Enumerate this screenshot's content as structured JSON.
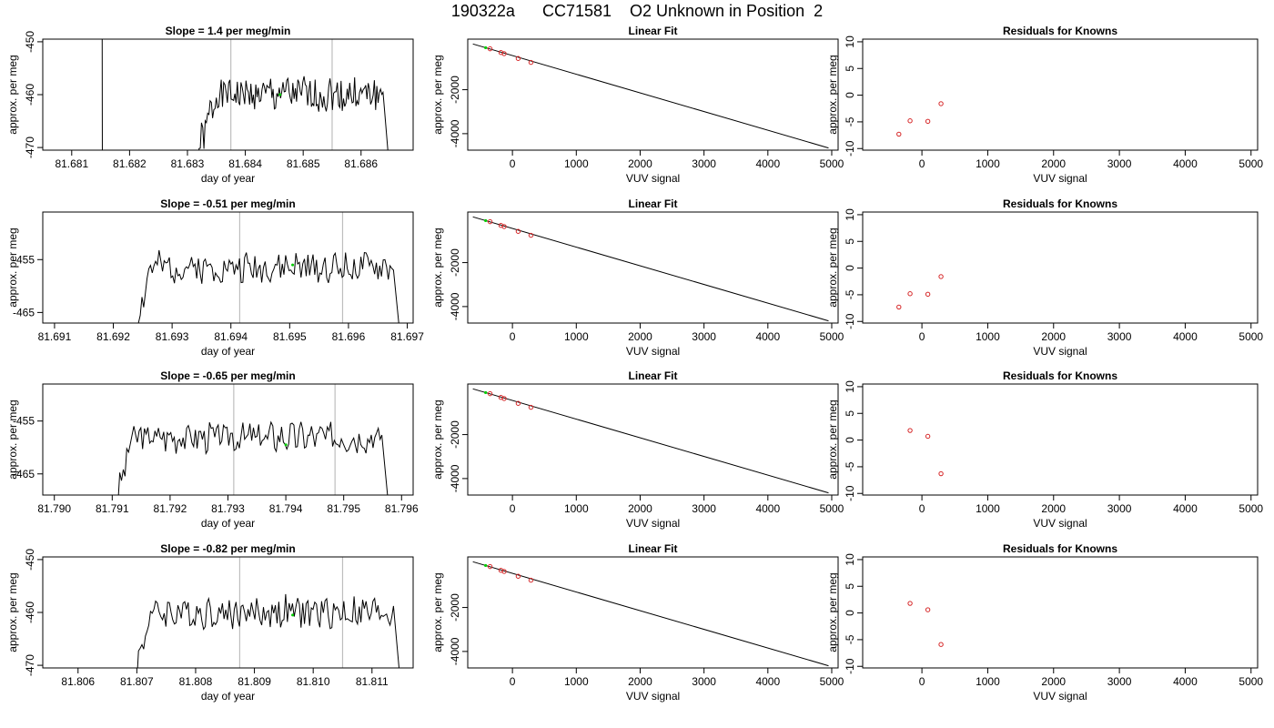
{
  "figure": {
    "title": "190322a      CC71581    O2 Unknown in Position  2"
  },
  "rows": [
    {
      "drift": {
        "title": "Slope =  1.4  per meg/min",
        "xlabel": "day of year",
        "ylabel": "approx. per meg",
        "xlim": [
          81.6805,
          81.6869
        ],
        "ylim": [
          -470.5,
          -449.5
        ],
        "xticks": [
          "81.681",
          "81.682",
          "81.683",
          "81.684",
          "81.685",
          "81.686"
        ],
        "yticks": [
          "-450",
          "-460",
          "-470"
        ],
        "ylabel_ticks_rotated": true,
        "segment": [
          81.6815,
          81.6865
        ],
        "start_shape": "spike",
        "vlines": [
          81.68375,
          81.6855
        ],
        "green_point": {
          "x": 81.6846,
          "y": -460
        },
        "level": -460,
        "amplitude": 3.2,
        "end_value": -459.5,
        "seed": 1
      },
      "fit": {
        "title": "Linear Fit",
        "xlabel": "VUV signal",
        "ylabel": "approx. per meg",
        "xlim": [
          -700,
          5100
        ],
        "ylim": [
          -4750,
          300
        ],
        "xticks": [
          "0",
          "1000",
          "2000",
          "3000",
          "4000",
          "5000"
        ],
        "yticks": [
          "-2000",
          "-4000"
        ],
        "line": {
          "x0": -620,
          "y0": 80,
          "x1": 4950,
          "y1": -4650
        },
        "red_points": [
          {
            "x": -350,
            "y": -140
          },
          {
            "x": -180,
            "y": -310
          },
          {
            "x": -130,
            "y": -360
          },
          {
            "x": 90,
            "y": -580
          },
          {
            "x": 290,
            "y": -760
          }
        ],
        "green_point": {
          "x": -420,
          "y": -90
        }
      },
      "resid": {
        "title": "Residuals for Knowns",
        "xlabel": "VUV signal",
        "ylabel": "approx. per meg",
        "xlim": [
          -900,
          5100
        ],
        "ylim": [
          -10.3,
          10.5
        ],
        "xticks": [
          "0",
          "1000",
          "2000",
          "3000",
          "4000",
          "5000"
        ],
        "yticks": [
          "10",
          "5",
          "0",
          "-5",
          "-10"
        ],
        "points": [
          {
            "x": -350,
            "y": -7.3
          },
          {
            "x": -180,
            "y": -4.8
          },
          {
            "x": 90,
            "y": -4.9
          },
          {
            "x": 290,
            "y": -1.6
          }
        ]
      }
    },
    {
      "drift": {
        "title": "Slope =  -0.51  per meg/min",
        "xlabel": "day of year",
        "ylabel": "approx. per meg",
        "xlim": [
          81.6908,
          81.6971
        ],
        "ylim": [
          -467,
          -446
        ],
        "xticks": [
          "81.691",
          "81.692",
          "81.693",
          "81.694",
          "81.695",
          "81.696",
          "81.697"
        ],
        "yticks": [
          "-455",
          "-465"
        ],
        "ylabel_ticks_rotated": false,
        "segment": [
          81.6924,
          81.6969
        ],
        "start_shape": "ramp",
        "vlines": [
          81.69415,
          81.6959
        ],
        "green_point": {
          "x": 81.69505,
          "y": -456
        },
        "level": -456.5,
        "amplitude": 2.6,
        "end_value": -467,
        "seed": 2
      },
      "fit": {
        "title": "Linear Fit",
        "xlabel": "VUV signal",
        "ylabel": "approx. per meg",
        "xlim": [
          -700,
          5100
        ],
        "ylim": [
          -4750,
          300
        ],
        "xticks": [
          "0",
          "1000",
          "2000",
          "3000",
          "4000",
          "5000"
        ],
        "yticks": [
          "-2000",
          "-4000"
        ],
        "line": {
          "x0": -620,
          "y0": 80,
          "x1": 4950,
          "y1": -4650
        },
        "red_points": [
          {
            "x": -350,
            "y": -140
          },
          {
            "x": -180,
            "y": -310
          },
          {
            "x": -130,
            "y": -360
          },
          {
            "x": 90,
            "y": -580
          },
          {
            "x": 290,
            "y": -760
          }
        ],
        "green_point": {
          "x": -420,
          "y": -90
        }
      },
      "resid": {
        "title": "Residuals for Knowns",
        "xlabel": "VUV signal",
        "ylabel": "approx. per meg",
        "xlim": [
          -900,
          5100
        ],
        "ylim": [
          -10.3,
          10.5
        ],
        "xticks": [
          "0",
          "1000",
          "2000",
          "3000",
          "4000",
          "5000"
        ],
        "yticks": [
          "10",
          "5",
          "0",
          "-5",
          "-10"
        ],
        "points": [
          {
            "x": -350,
            "y": -7.3
          },
          {
            "x": -180,
            "y": -4.8
          },
          {
            "x": 90,
            "y": -4.9
          },
          {
            "x": 290,
            "y": -1.6
          }
        ]
      }
    },
    {
      "drift": {
        "title": "Slope =  -0.65  per meg/min",
        "xlabel": "day of year",
        "ylabel": "approx. per meg",
        "xlim": [
          81.7898,
          81.7962
        ],
        "ylim": [
          -469,
          -448
        ],
        "xticks": [
          "81.790",
          "81.791",
          "81.792",
          "81.793",
          "81.794",
          "81.795",
          "81.796"
        ],
        "yticks": [
          "-455",
          "-465"
        ],
        "ylabel_ticks_rotated": false,
        "segment": [
          81.7911,
          81.7958
        ],
        "start_shape": "ramp",
        "vlines": [
          81.7931,
          81.79485
        ],
        "green_point": {
          "x": 81.794,
          "y": -459.5
        },
        "level": -458,
        "amplitude": 2.6,
        "end_value": -469,
        "seed": 3
      },
      "fit": {
        "title": "Linear Fit",
        "xlabel": "VUV signal",
        "ylabel": "approx. per meg",
        "xlim": [
          -700,
          5100
        ],
        "ylim": [
          -4750,
          300
        ],
        "xticks": [
          "0",
          "1000",
          "2000",
          "3000",
          "4000",
          "5000"
        ],
        "yticks": [
          "-2000",
          "-4000"
        ],
        "line": {
          "x0": -620,
          "y0": 80,
          "x1": 4950,
          "y1": -4650
        },
        "red_points": [
          {
            "x": -350,
            "y": -140
          },
          {
            "x": -180,
            "y": -310
          },
          {
            "x": -130,
            "y": -360
          },
          {
            "x": 90,
            "y": -580
          },
          {
            "x": 290,
            "y": -760
          }
        ],
        "green_point": {
          "x": -420,
          "y": -90
        }
      },
      "resid": {
        "title": "Residuals for Knowns",
        "xlabel": "VUV signal",
        "ylabel": "approx. per meg",
        "xlim": [
          -900,
          5100
        ],
        "ylim": [
          -10.3,
          10.5
        ],
        "xticks": [
          "0",
          "1000",
          "2000",
          "3000",
          "4000",
          "5000"
        ],
        "yticks": [
          "10",
          "5",
          "0",
          "-5",
          "-10"
        ],
        "points": [
          {
            "x": -180,
            "y": 1.8
          },
          {
            "x": 90,
            "y": 0.7
          },
          {
            "x": 290,
            "y": -6.3
          }
        ]
      }
    },
    {
      "drift": {
        "title": "Slope =  -0.82  per meg/min",
        "xlabel": "day of year",
        "ylabel": "approx. per meg",
        "xlim": [
          81.8054,
          81.8117
        ],
        "ylim": [
          -470.5,
          -449.5
        ],
        "xticks": [
          "81.806",
          "81.807",
          "81.808",
          "81.809",
          "81.810",
          "81.811"
        ],
        "yticks": [
          "-450",
          "-460",
          "-470"
        ],
        "ylabel_ticks_rotated": true,
        "segment": [
          81.807,
          81.8115
        ],
        "start_shape": "ramp",
        "vlines": [
          81.80875,
          81.8105
        ],
        "green_point": {
          "x": 81.80965,
          "y": -460.5
        },
        "level": -460,
        "amplitude": 2.8,
        "end_value": -470.5,
        "seed": 4
      },
      "fit": {
        "title": "Linear Fit",
        "xlabel": "VUV signal",
        "ylabel": "approx. per meg",
        "xlim": [
          -700,
          5100
        ],
        "ylim": [
          -4750,
          300
        ],
        "xticks": [
          "0",
          "1000",
          "2000",
          "3000",
          "4000",
          "5000"
        ],
        "yticks": [
          "-2000",
          "-4000"
        ],
        "line": {
          "x0": -620,
          "y0": 80,
          "x1": 4950,
          "y1": -4650
        },
        "red_points": [
          {
            "x": -350,
            "y": -140
          },
          {
            "x": -180,
            "y": -310
          },
          {
            "x": -130,
            "y": -360
          },
          {
            "x": 90,
            "y": -580
          },
          {
            "x": 290,
            "y": -760
          }
        ],
        "green_point": {
          "x": -420,
          "y": -90
        }
      },
      "resid": {
        "title": "Residuals for Knowns",
        "xlabel": "VUV signal",
        "ylabel": "approx. per meg",
        "xlim": [
          -900,
          5100
        ],
        "ylim": [
          -10.3,
          10.5
        ],
        "xticks": [
          "0",
          "1000",
          "2000",
          "3000",
          "4000",
          "5000"
        ],
        "yticks": [
          "10",
          "5",
          "0",
          "-5",
          "-10"
        ],
        "points": [
          {
            "x": -180,
            "y": 1.8
          },
          {
            "x": 90,
            "y": 0.6
          },
          {
            "x": 290,
            "y": -5.9
          }
        ]
      }
    }
  ],
  "colors": {
    "line": "#000000",
    "vline": "#bebebe",
    "red_point": "#d62728",
    "green_point": "#00cc00"
  },
  "chart_data": [
    {
      "type": "line",
      "title": "Slope =  1.4  per meg/min",
      "xlabel": "day of year",
      "ylabel": "approx. per meg",
      "xlim": [
        81.6805,
        81.6869
      ],
      "ylim": [
        -470.5,
        -449.5
      ],
      "vertical_markers": [
        81.68375,
        81.6855
      ]
    },
    {
      "type": "scatter",
      "title": "Linear Fit",
      "xlabel": "VUV signal",
      "ylabel": "approx. per meg",
      "points": [
        [
          -420,
          -90
        ],
        [
          -350,
          -140
        ],
        [
          -180,
          -310
        ],
        [
          -130,
          -360
        ],
        [
          90,
          -580
        ],
        [
          290,
          -760
        ]
      ],
      "fit_line": [
        [
          -620,
          80
        ],
        [
          4950,
          -4650
        ]
      ]
    },
    {
      "type": "scatter",
      "title": "Residuals for Knowns",
      "xlabel": "VUV signal",
      "ylabel": "approx. per meg",
      "points": [
        [
          -350,
          -7.3
        ],
        [
          -180,
          -4.8
        ],
        [
          90,
          -4.9
        ],
        [
          290,
          -1.6
        ]
      ]
    },
    {
      "type": "line",
      "title": "Slope =  -0.51  per meg/min",
      "xlabel": "day of year",
      "ylabel": "approx. per meg",
      "xlim": [
        81.6908,
        81.6971
      ],
      "ylim": [
        -467,
        -446
      ],
      "vertical_markers": [
        81.69415,
        81.6959
      ]
    },
    {
      "type": "scatter",
      "title": "Linear Fit",
      "xlabel": "VUV signal",
      "ylabel": "approx. per meg",
      "points": [
        [
          -420,
          -90
        ],
        [
          -350,
          -140
        ],
        [
          -180,
          -310
        ],
        [
          -130,
          -360
        ],
        [
          90,
          -580
        ],
        [
          290,
          -760
        ]
      ],
      "fit_line": [
        [
          -620,
          80
        ],
        [
          4950,
          -4650
        ]
      ]
    },
    {
      "type": "scatter",
      "title": "Residuals for Knowns",
      "xlabel": "VUV signal",
      "ylabel": "approx. per meg",
      "points": [
        [
          -350,
          -7.3
        ],
        [
          -180,
          -4.8
        ],
        [
          90,
          -4.9
        ],
        [
          290,
          -1.6
        ]
      ]
    },
    {
      "type": "line",
      "title": "Slope =  -0.65  per meg/min",
      "xlabel": "day of year",
      "ylabel": "approx. per meg",
      "xlim": [
        81.7898,
        81.7962
      ],
      "ylim": [
        -469,
        -448
      ],
      "vertical_markers": [
        81.7931,
        81.79485
      ]
    },
    {
      "type": "scatter",
      "title": "Linear Fit",
      "xlabel": "VUV signal",
      "ylabel": "approx. per meg",
      "points": [
        [
          -420,
          -90
        ],
        [
          -350,
          -140
        ],
        [
          -180,
          -310
        ],
        [
          -130,
          -360
        ],
        [
          90,
          -580
        ],
        [
          290,
          -760
        ]
      ],
      "fit_line": [
        [
          -620,
          80
        ],
        [
          4950,
          -4650
        ]
      ]
    },
    {
      "type": "scatter",
      "title": "Residuals for Knowns",
      "xlabel": "VUV signal",
      "ylabel": "approx. per meg",
      "points": [
        [
          -180,
          1.8
        ],
        [
          90,
          0.7
        ],
        [
          290,
          -6.3
        ]
      ]
    },
    {
      "type": "line",
      "title": "Slope =  -0.82  per meg/min",
      "xlabel": "day of year",
      "ylabel": "approx. per meg",
      "xlim": [
        81.8054,
        81.8117
      ],
      "ylim": [
        -470.5,
        -449.5
      ],
      "vertical_markers": [
        81.80875,
        81.8105
      ]
    },
    {
      "type": "scatter",
      "title": "Linear Fit",
      "xlabel": "VUV signal",
      "ylabel": "approx. per meg",
      "points": [
        [
          -420,
          -90
        ],
        [
          -350,
          -140
        ],
        [
          -180,
          -310
        ],
        [
          -130,
          -360
        ],
        [
          90,
          -580
        ],
        [
          290,
          -760
        ]
      ],
      "fit_line": [
        [
          -620,
          80
        ],
        [
          4950,
          -4650
        ]
      ]
    },
    {
      "type": "scatter",
      "title": "Residuals for Knowns",
      "xlabel": "VUV signal",
      "ylabel": "approx. per meg",
      "points": [
        [
          -180,
          1.8
        ],
        [
          90,
          0.6
        ],
        [
          290,
          -5.9
        ]
      ]
    }
  ]
}
